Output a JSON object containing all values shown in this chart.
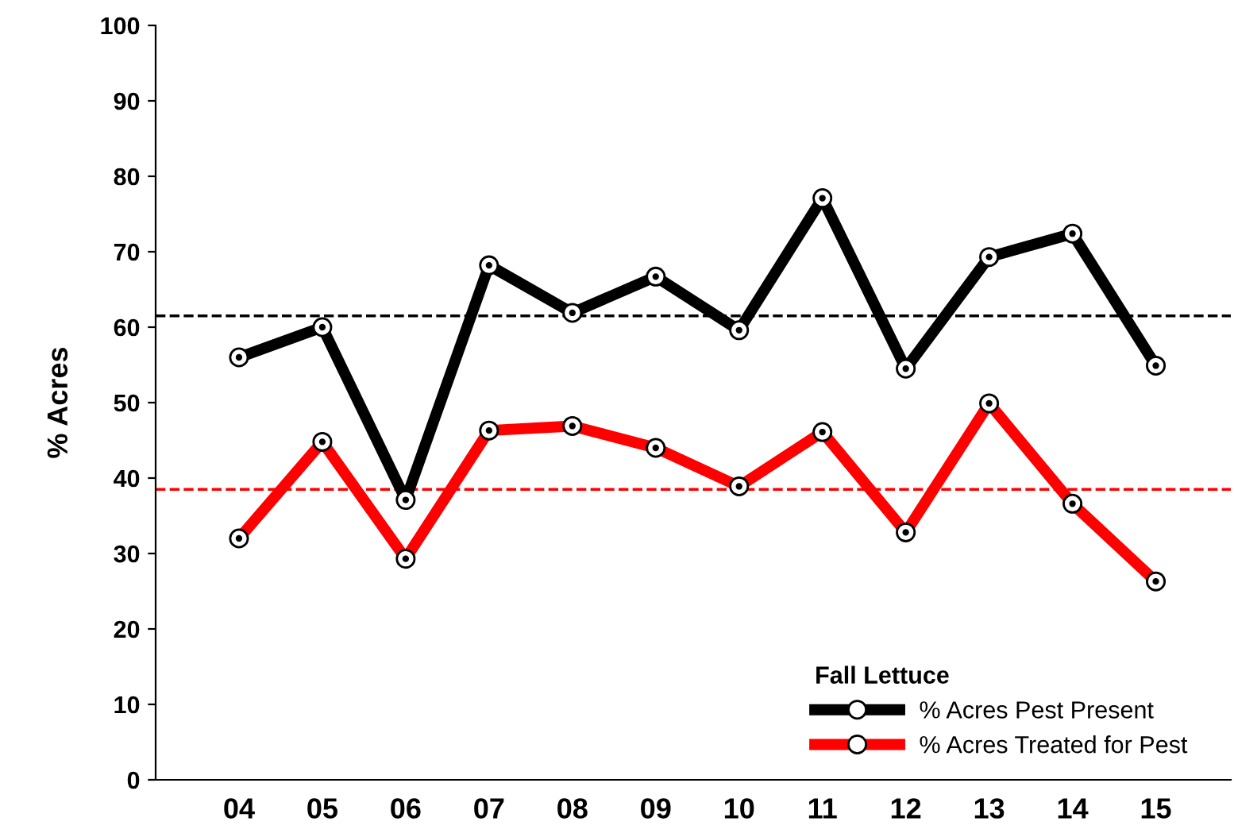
{
  "chart_data": {
    "type": "line",
    "ylabel": "% Acres",
    "legend_title": "Fall Lettuce",
    "categories": [
      "04",
      "05",
      "06",
      "07",
      "08",
      "09",
      "10",
      "11",
      "12",
      "13",
      "14",
      "15"
    ],
    "series": [
      {
        "name": "% Acres Pest Present",
        "color": "#000000",
        "values": [
          56.0,
          60.0,
          37.1,
          68.2,
          61.9,
          66.7,
          59.6,
          77.1,
          54.5,
          69.3,
          72.4,
          54.9
        ]
      },
      {
        "name": "% Acres Treated for Pest",
        "color": "#ff0000",
        "values": [
          32.0,
          44.8,
          29.3,
          46.3,
          46.9,
          44.0,
          38.9,
          46.1,
          32.8,
          49.9,
          36.6,
          26.3
        ]
      }
    ],
    "ref_lines": [
      {
        "axis": "y",
        "value": 61.5,
        "color": "#000000",
        "line_style": "dashed"
      },
      {
        "axis": "y",
        "value": 38.5,
        "color": "#ff0000",
        "line_style": "dashed"
      }
    ],
    "ylim": [
      0,
      100
    ],
    "yticks": [
      0,
      10,
      20,
      30,
      40,
      50,
      60,
      70,
      80,
      90,
      100
    ],
    "grid": false,
    "legend": "bottom right",
    "marker": "circle",
    "line_style": "solid"
  }
}
